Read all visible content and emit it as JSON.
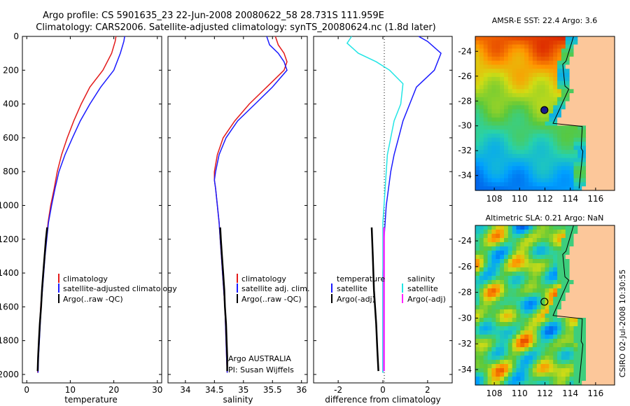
{
  "header": {
    "line1": "Argo profile: CS 5901635_23 22-Jun-2008 20080622_58 28.731S 111.959E",
    "line2": "Climatology: CARS2006. Satellite-adjusted climatology: synTS_20080624.nc (1.8d later)"
  },
  "footer_stamp": "CSIRO 02-Jul-2008 10:30:55",
  "credit": {
    "line1": "Argo AUSTRALIA",
    "line2": "PI: Susan Wijffels"
  },
  "colors": {
    "climatology": "#e31a1a",
    "satellite": "#1a1aff",
    "argo": "#000000",
    "sal_sat": "#22e5e5",
    "sal_argo": "#ff22ff"
  },
  "chart_data": [
    {
      "type": "line",
      "xlabel": "temperature",
      "xlim": [
        -1,
        31
      ],
      "ylim": [
        2050,
        0
      ],
      "xticks": [
        0,
        10,
        20,
        30
      ],
      "yticks": [
        0,
        200,
        400,
        600,
        800,
        1000,
        1200,
        1400,
        1600,
        1800,
        2000
      ],
      "legend": [
        "climatology",
        "satellite-adjusted climatology",
        "Argo(..raw -QC)"
      ],
      "series": [
        {
          "name": "climatology",
          "points": [
            [
              20.5,
              0
            ],
            [
              20.3,
              30
            ],
            [
              19.5,
              100
            ],
            [
              17.5,
              200
            ],
            [
              14.5,
              300
            ],
            [
              12.5,
              400
            ],
            [
              10.8,
              500
            ],
            [
              9.3,
              600
            ],
            [
              8.0,
              700
            ],
            [
              7.0,
              800
            ],
            [
              6.3,
              900
            ],
            [
              5.5,
              1000
            ],
            [
              4.9,
              1100
            ],
            [
              4.5,
              1200
            ],
            [
              4.1,
              1300
            ],
            [
              3.8,
              1400
            ],
            [
              3.5,
              1500
            ],
            [
              3.2,
              1600
            ],
            [
              3.0,
              1700
            ],
            [
              2.8,
              1800
            ],
            [
              2.6,
              1900
            ],
            [
              2.5,
              1990
            ]
          ]
        },
        {
          "name": "satellite-adjusted climatology",
          "points": [
            [
              22.5,
              0
            ],
            [
              22.3,
              30
            ],
            [
              21.5,
              100
            ],
            [
              20.0,
              200
            ],
            [
              17.0,
              300
            ],
            [
              14.5,
              400
            ],
            [
              12.3,
              500
            ],
            [
              10.5,
              600
            ],
            [
              8.8,
              700
            ],
            [
              7.4,
              800
            ],
            [
              6.5,
              900
            ],
            [
              5.7,
              1000
            ],
            [
              5.0,
              1100
            ],
            [
              4.6,
              1200
            ],
            [
              4.2,
              1300
            ],
            [
              3.9,
              1400
            ],
            [
              3.6,
              1500
            ],
            [
              3.3,
              1600
            ],
            [
              3.1,
              1700
            ],
            [
              2.9,
              1800
            ],
            [
              2.7,
              1900
            ],
            [
              2.6,
              1990
            ]
          ]
        },
        {
          "name": "Argo(..raw -QC)",
          "points": [
            [
              4.7,
              1130
            ],
            [
              4.4,
              1200
            ],
            [
              4.1,
              1300
            ],
            [
              3.8,
              1400
            ],
            [
              3.5,
              1500
            ],
            [
              3.3,
              1600
            ],
            [
              3.0,
              1700
            ],
            [
              2.8,
              1800
            ],
            [
              2.6,
              1900
            ],
            [
              2.5,
              1980
            ]
          ]
        }
      ]
    },
    {
      "type": "line",
      "xlabel": "salinity",
      "xlim": [
        33.7,
        36.1
      ],
      "ylim": [
        2050,
        0
      ],
      "xticks": [
        34,
        34.5,
        35,
        35.5,
        36
      ],
      "legend": [
        "climatology",
        "satellite adj. clim.",
        "Argo(..raw -QC)"
      ],
      "series": [
        {
          "name": "climatology",
          "points": [
            [
              35.55,
              0
            ],
            [
              35.6,
              50
            ],
            [
              35.7,
              100
            ],
            [
              35.75,
              150
            ],
            [
              35.7,
              200
            ],
            [
              35.4,
              300
            ],
            [
              35.1,
              400
            ],
            [
              34.85,
              500
            ],
            [
              34.65,
              600
            ],
            [
              34.55,
              700
            ],
            [
              34.5,
              800
            ],
            [
              34.5,
              850
            ],
            [
              34.52,
              900
            ],
            [
              34.55,
              1000
            ],
            [
              34.58,
              1100
            ],
            [
              34.6,
              1200
            ],
            [
              34.62,
              1300
            ],
            [
              34.64,
              1400
            ],
            [
              34.66,
              1500
            ],
            [
              34.68,
              1600
            ],
            [
              34.69,
              1700
            ],
            [
              34.7,
              1800
            ],
            [
              34.71,
              1900
            ],
            [
              34.72,
              1990
            ]
          ]
        },
        {
          "name": "satellite adj. clim.",
          "points": [
            [
              35.4,
              0
            ],
            [
              35.45,
              50
            ],
            [
              35.6,
              100
            ],
            [
              35.7,
              150
            ],
            [
              35.75,
              200
            ],
            [
              35.5,
              300
            ],
            [
              35.2,
              400
            ],
            [
              34.9,
              500
            ],
            [
              34.7,
              600
            ],
            [
              34.58,
              700
            ],
            [
              34.52,
              800
            ],
            [
              34.5,
              850
            ],
            [
              34.52,
              900
            ],
            [
              34.55,
              1000
            ],
            [
              34.58,
              1100
            ],
            [
              34.6,
              1200
            ],
            [
              34.62,
              1300
            ],
            [
              34.64,
              1400
            ],
            [
              34.66,
              1500
            ],
            [
              34.68,
              1600
            ],
            [
              34.69,
              1700
            ],
            [
              34.7,
              1800
            ],
            [
              34.71,
              1900
            ],
            [
              34.72,
              1990
            ]
          ]
        },
        {
          "name": "Argo(..raw -QC)",
          "points": [
            [
              34.6,
              1130
            ],
            [
              34.61,
              1200
            ],
            [
              34.63,
              1300
            ],
            [
              34.65,
              1400
            ],
            [
              34.67,
              1500
            ],
            [
              34.68,
              1600
            ],
            [
              34.7,
              1700
            ],
            [
              34.71,
              1800
            ],
            [
              34.72,
              1900
            ],
            [
              34.72,
              1980
            ]
          ]
        }
      ]
    },
    {
      "type": "line",
      "xlabel": "difference from climatology",
      "xlim": [
        -3.1,
        3.1
      ],
      "ylim": [
        2050,
        0
      ],
      "xticks": [
        -2,
        0,
        2
      ],
      "legend_temperature": {
        "title": "temperature",
        "items": [
          "satellite",
          "Argo(-adj)"
        ]
      },
      "legend_salinity": {
        "title": "salinity",
        "items": [
          "satellite",
          "Argo(-adj)"
        ]
      },
      "series": [
        {
          "name": "temperature satellite",
          "points": [
            [
              1.6,
              0
            ],
            [
              2.0,
              30
            ],
            [
              2.6,
              100
            ],
            [
              2.3,
              200
            ],
            [
              1.5,
              300
            ],
            [
              1.2,
              400
            ],
            [
              0.9,
              500
            ],
            [
              0.7,
              600
            ],
            [
              0.5,
              700
            ],
            [
              0.35,
              800
            ],
            [
              0.25,
              900
            ],
            [
              0.15,
              1000
            ],
            [
              0.1,
              1100
            ],
            [
              0.05,
              1200
            ],
            [
              0.0,
              1400
            ],
            [
              0.0,
              1990
            ]
          ]
        },
        {
          "name": "salinity satellite",
          "points": [
            [
              -1.4,
              0
            ],
            [
              -1.6,
              40
            ],
            [
              -1.1,
              100
            ],
            [
              -0.3,
              150
            ],
            [
              0.3,
              200
            ],
            [
              0.9,
              280
            ],
            [
              0.8,
              400
            ],
            [
              0.5,
              500
            ],
            [
              0.35,
              600
            ],
            [
              0.2,
              700
            ],
            [
              0.15,
              800
            ],
            [
              0.1,
              900
            ],
            [
              0.05,
              1000
            ],
            [
              0.0,
              1100
            ],
            [
              0.0,
              1990
            ]
          ]
        },
        {
          "name": "temperature Argo(-adj)",
          "points": [
            [
              -0.5,
              1130
            ],
            [
              -0.45,
              1300
            ],
            [
              -0.4,
              1500
            ],
            [
              -0.3,
              1700
            ],
            [
              -0.25,
              1850
            ],
            [
              -0.2,
              1980
            ]
          ]
        },
        {
          "name": "salinity Argo(-adj)",
          "points": [
            [
              0.05,
              1130
            ],
            [
              0.05,
              1500
            ],
            [
              0.05,
              1800
            ],
            [
              0.05,
              1980
            ]
          ]
        }
      ]
    },
    {
      "type": "heatmap",
      "title": "AMSR-E SST: 22.4 Argo: 3.6",
      "xlim": [
        106.5,
        117.5
      ],
      "ylim": [
        -35.2,
        -22.8
      ],
      "xticks": [
        108,
        110,
        112,
        114,
        116
      ],
      "yticks": [
        -24,
        -26,
        -28,
        -30,
        -32,
        -34
      ],
      "float_position": [
        111.959,
        -28.731
      ]
    },
    {
      "type": "heatmap",
      "title": "Altimetric SLA: 0.21 Argo: NaN",
      "xlim": [
        106.5,
        117.5
      ],
      "ylim": [
        -35.2,
        -22.8
      ],
      "xticks": [
        108,
        110,
        112,
        114,
        116
      ],
      "yticks": [
        -24,
        -26,
        -28,
        -30,
        -32,
        -34
      ],
      "float_position": [
        111.959,
        -28.731
      ]
    }
  ]
}
